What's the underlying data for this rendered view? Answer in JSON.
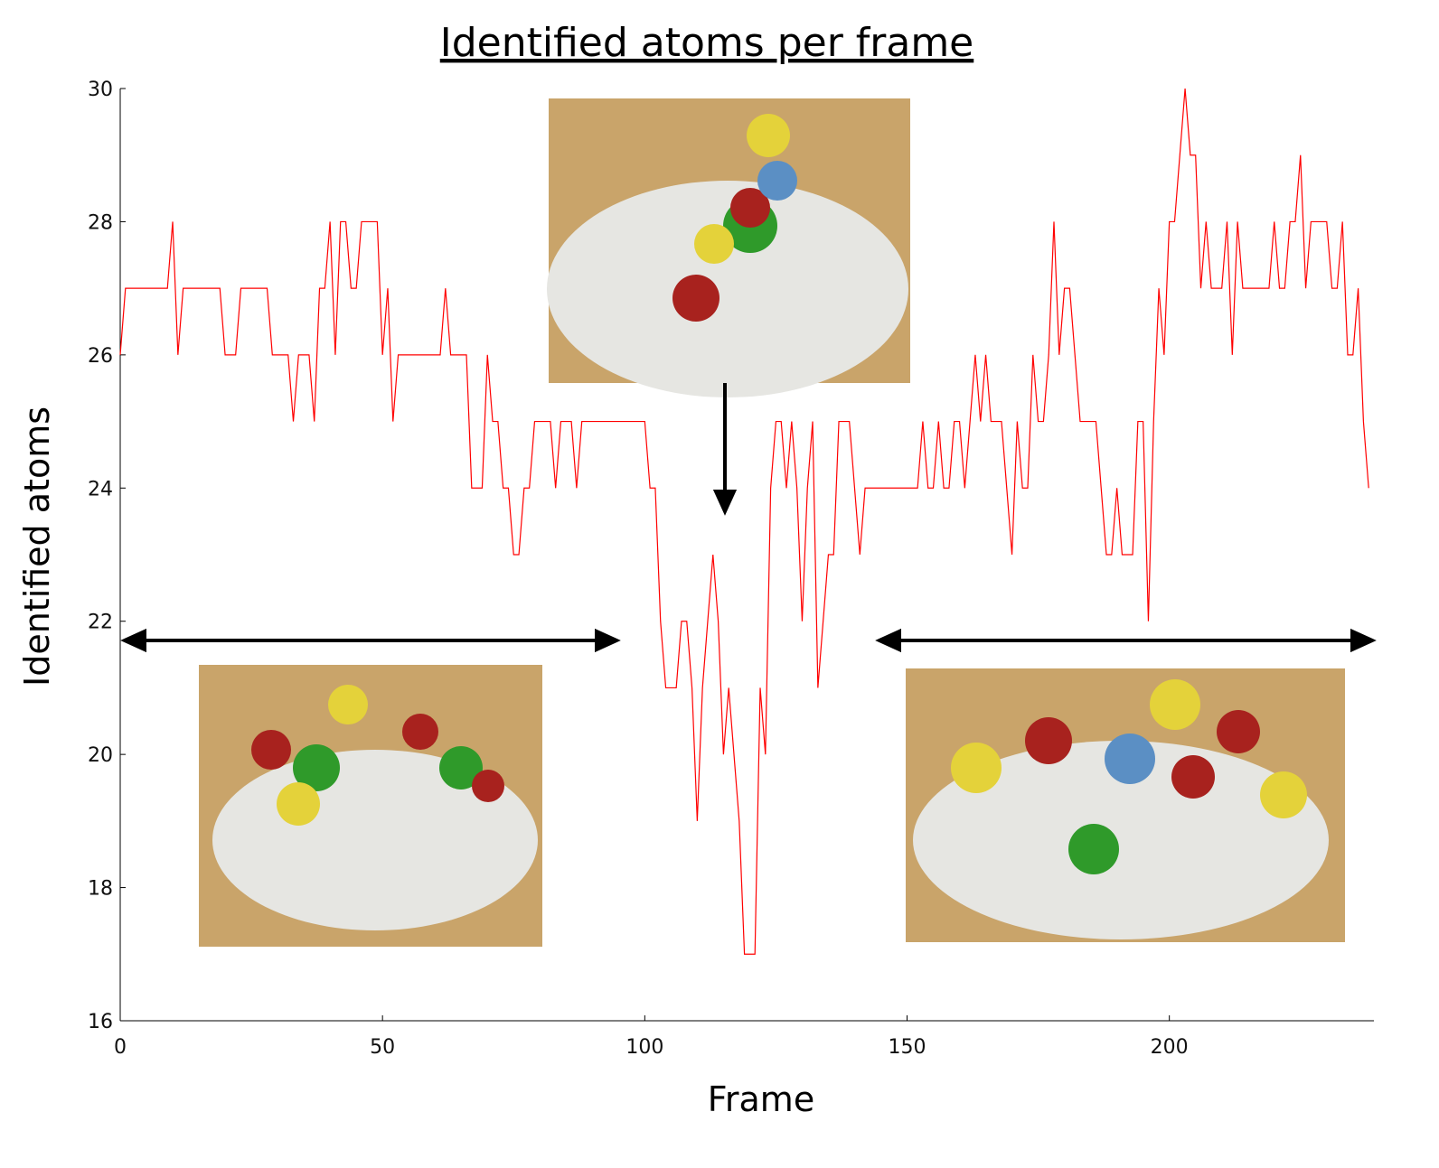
{
  "chart_data": {
    "type": "line",
    "title": "Identified atoms per frame",
    "x_label": "Frame",
    "y_label": "Identified atoms",
    "x": [
      0,
      1,
      2,
      3,
      4,
      5,
      6,
      7,
      8,
      9,
      10,
      11,
      12,
      13,
      14,
      15,
      16,
      17,
      18,
      19,
      20,
      21,
      22,
      23,
      24,
      25,
      26,
      27,
      28,
      29,
      30,
      31,
      32,
      33,
      34,
      35,
      36,
      37,
      38,
      39,
      40,
      41,
      42,
      43,
      44,
      45,
      46,
      47,
      48,
      49,
      50,
      51,
      52,
      53,
      54,
      55,
      56,
      57,
      58,
      59,
      60,
      61,
      62,
      63,
      64,
      65,
      66,
      67,
      68,
      69,
      70,
      71,
      72,
      73,
      74,
      75,
      76,
      77,
      78,
      79,
      80,
      81,
      82,
      83,
      84,
      85,
      86,
      87,
      88,
      89,
      90,
      91,
      92,
      93,
      94,
      95,
      96,
      97,
      98,
      99,
      100,
      101,
      102,
      103,
      104,
      105,
      106,
      107,
      108,
      109,
      110,
      111,
      112,
      113,
      114,
      115,
      116,
      117,
      118,
      119,
      120,
      121,
      122,
      123,
      124,
      125,
      126,
      127,
      128,
      129,
      130,
      131,
      132,
      133,
      134,
      135,
      136,
      137,
      138,
      139,
      140,
      141,
      142,
      143,
      144,
      145,
      146,
      147,
      148,
      149,
      150,
      151,
      152,
      153,
      154,
      155,
      156,
      157,
      158,
      159,
      160,
      161,
      162,
      163,
      164,
      165,
      166,
      167,
      168,
      169,
      170,
      171,
      172,
      173,
      174,
      175,
      176,
      177,
      178,
      179,
      180,
      181,
      182,
      183,
      184,
      185,
      186,
      187,
      188,
      189,
      190,
      191,
      192,
      193,
      194,
      195,
      196,
      197,
      198,
      199,
      200,
      201,
      202,
      203,
      204,
      205,
      206,
      207,
      208,
      209,
      210,
      211,
      212,
      213,
      214,
      215,
      216,
      217,
      218,
      219,
      220,
      221,
      222,
      223,
      224,
      225,
      226,
      227,
      228,
      229,
      230,
      231,
      232,
      233,
      234,
      235,
      236,
      237,
      238
    ],
    "series": [
      {
        "name": "Identified atoms",
        "color": "#ff0000",
        "values": [
          26,
          27,
          27,
          27,
          27,
          27,
          27,
          27,
          27,
          27,
          28,
          26,
          27,
          27,
          27,
          27,
          27,
          27,
          27,
          27,
          26,
          26,
          26,
          27,
          27,
          27,
          27,
          27,
          27,
          26,
          26,
          26,
          26,
          25,
          26,
          26,
          26,
          25,
          27,
          27,
          28,
          26,
          28,
          28,
          27,
          27,
          28,
          28,
          28,
          28,
          26,
          27,
          25,
          26,
          26,
          26,
          26,
          26,
          26,
          26,
          26,
          26,
          27,
          26,
          26,
          26,
          26,
          24,
          24,
          24,
          26,
          25,
          25,
          24,
          24,
          23,
          23,
          24,
          24,
          25,
          25,
          25,
          25,
          24,
          25,
          25,
          25,
          24,
          25,
          25,
          25,
          25,
          25,
          25,
          25,
          25,
          25,
          25,
          25,
          25,
          25,
          24,
          24,
          22,
          21,
          21,
          21,
          22,
          22,
          21,
          19,
          21,
          22,
          23,
          22,
          20,
          21,
          20,
          19,
          17,
          17,
          17,
          21,
          20,
          24,
          25,
          25,
          24,
          25,
          24,
          22,
          24,
          25,
          21,
          22,
          23,
          23,
          25,
          25,
          25,
          24,
          23,
          24,
          24,
          24,
          24,
          24,
          24,
          24,
          24,
          24,
          24,
          24,
          25,
          24,
          24,
          25,
          24,
          24,
          25,
          25,
          24,
          25,
          26,
          25,
          26,
          25,
          25,
          25,
          24,
          23,
          25,
          24,
          24,
          26,
          25,
          25,
          26,
          28,
          26,
          27,
          27,
          26,
          25,
          25,
          25,
          25,
          24,
          23,
          23,
          24,
          23,
          23,
          23,
          25,
          25,
          22,
          25,
          27,
          26,
          28,
          28,
          29,
          30,
          29,
          29,
          27,
          28,
          27,
          27,
          27,
          28,
          26,
          28,
          27,
          27,
          27,
          27,
          27,
          27,
          28,
          27,
          27,
          28,
          28,
          29,
          27,
          28,
          28,
          28,
          28,
          27,
          27,
          28,
          26,
          26,
          27,
          25,
          24
        ]
      }
    ],
    "xlim": [
      0,
      239
    ],
    "ylim": [
      16,
      30
    ],
    "xticks": [
      0,
      50,
      100,
      150,
      200
    ],
    "yticks": [
      16,
      18,
      20,
      22,
      24,
      26,
      28,
      30
    ]
  }
}
